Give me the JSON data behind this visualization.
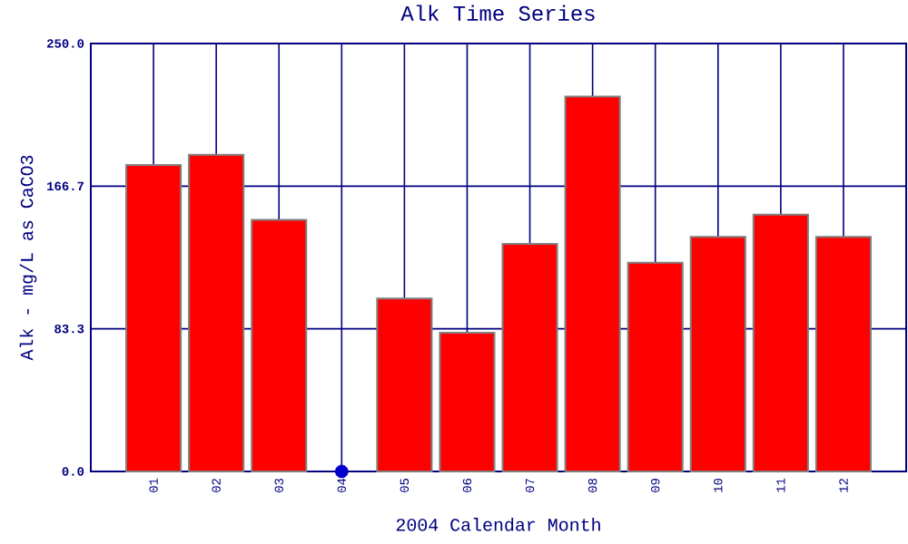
{
  "chart_data": {
    "type": "bar",
    "title": "Alk Time Series",
    "xlabel": "2004 Calendar Month",
    "ylabel": "Alk - mg/L as CaCO3",
    "categories": [
      "01",
      "02",
      "03",
      "04",
      "05",
      "06",
      "07",
      "08",
      "09",
      "10",
      "11",
      "12"
    ],
    "series": [
      {
        "color": "#ff0000",
        "values": [
          179,
          185,
          147,
          null,
          101,
          81,
          133,
          219,
          122,
          137,
          150,
          137
        ]
      },
      {
        "type": "scatter",
        "color": "#0000cc",
        "x": [
          "04"
        ],
        "values": [
          0
        ],
        "marker": "circle"
      }
    ],
    "ylim": [
      0,
      250
    ],
    "yticks": [
      {
        "value": 0,
        "label": "0.0"
      },
      {
        "value": 83.333,
        "label": "83.3"
      },
      {
        "value": 166.667,
        "label": "166.7"
      },
      {
        "value": 250,
        "label": "250.0"
      }
    ],
    "grid": true
  }
}
